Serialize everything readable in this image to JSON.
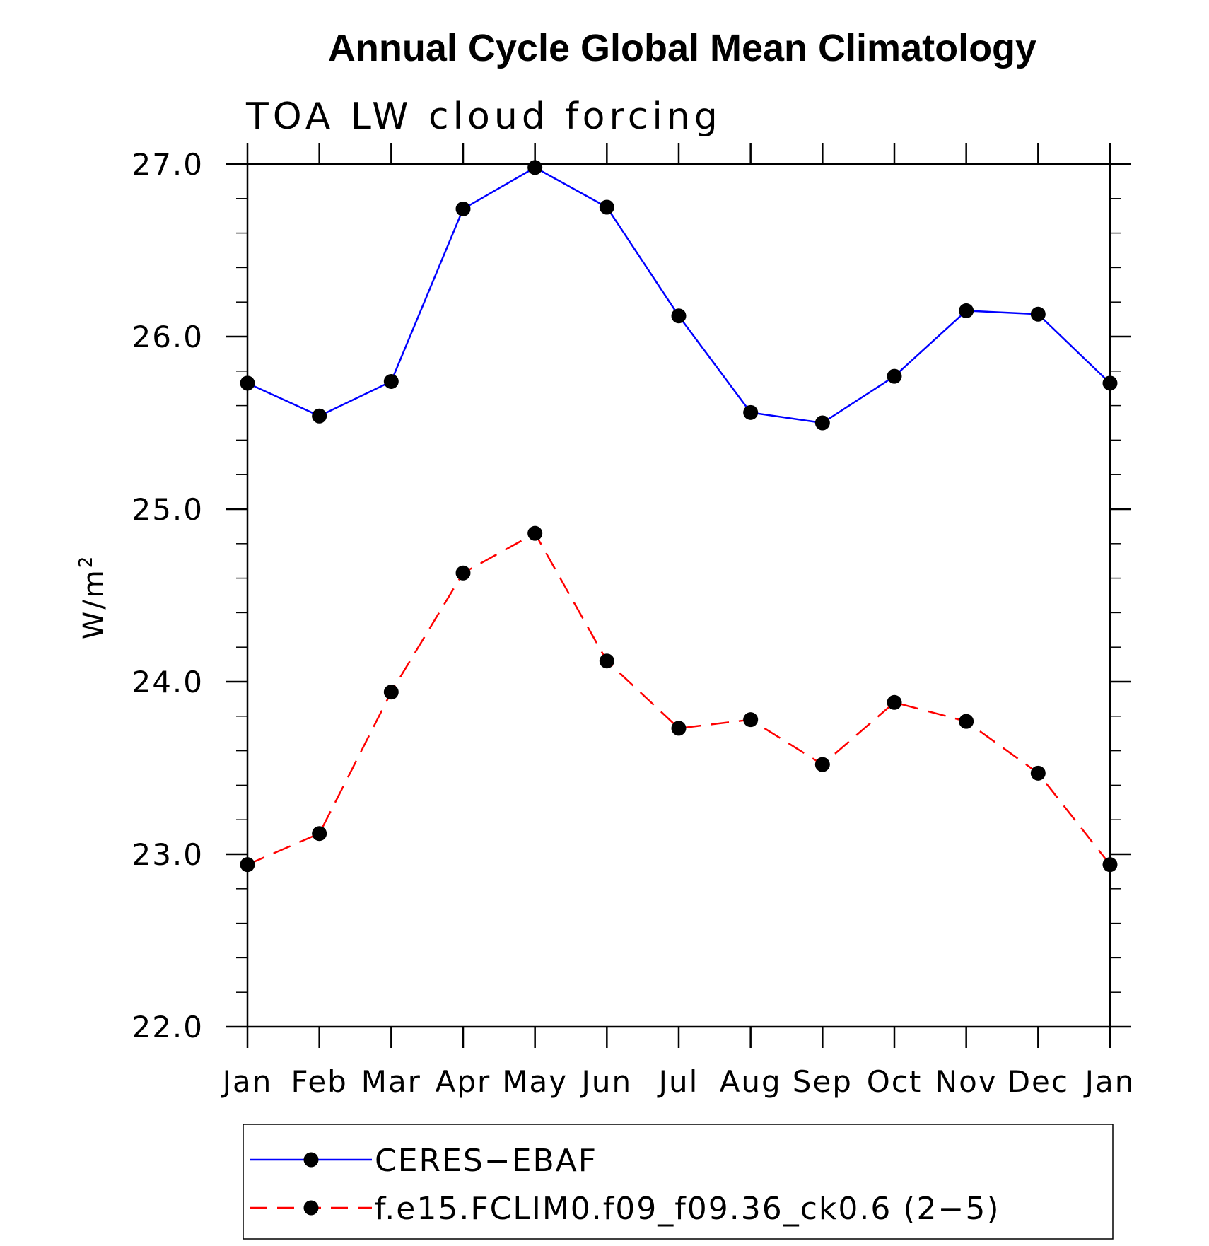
{
  "chart_data": {
    "type": "line",
    "title": "Annual Cycle Global Mean Climatology",
    "subtitle": "TOA LW cloud forcing",
    "ylabel": "W/m",
    "ylabel_superscript": "2",
    "categories": [
      "Jan",
      "Feb",
      "Mar",
      "Apr",
      "May",
      "Jun",
      "Jul",
      "Aug",
      "Sep",
      "Oct",
      "Nov",
      "Dec",
      "Jan"
    ],
    "ylim": [
      22.0,
      27.0
    ],
    "yticks": [
      "22.0",
      "23.0",
      "24.0",
      "25.0",
      "26.0",
      "27.0"
    ],
    "series": [
      {
        "name": "CERES−EBAF",
        "color": "#0000ff",
        "line_style": "solid",
        "marker": "filled-circle",
        "values": [
          25.73,
          25.54,
          25.74,
          26.74,
          26.98,
          26.75,
          26.12,
          25.56,
          25.5,
          25.77,
          26.15,
          26.13,
          25.73
        ]
      },
      {
        "name": "f.e15.FCLIM0.f09_f09.36_ck0.6 (2−5)",
        "color": "#ff0000",
        "line_style": "dashed",
        "marker": "filled-circle",
        "values": [
          22.94,
          23.12,
          23.94,
          24.63,
          24.86,
          24.12,
          23.73,
          23.78,
          23.52,
          23.88,
          23.77,
          23.47,
          22.94
        ]
      }
    ],
    "grid": false,
    "legend_position": "bottom"
  }
}
